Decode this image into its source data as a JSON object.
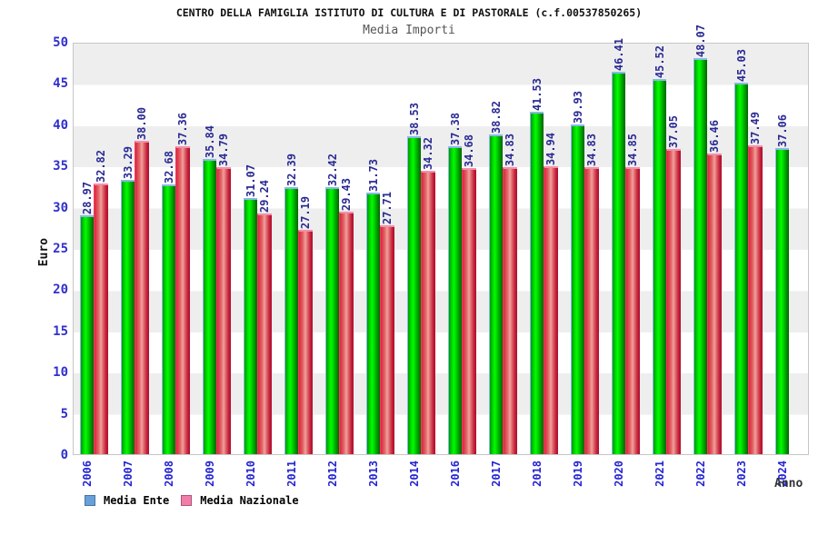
{
  "title": "CENTRO DELLA FAMIGLIA ISTITUTO DI CULTURA E DI PASTORALE (c.f.00537850265)",
  "subtitle": "Media Importi",
  "axes": {
    "y_label": "Euro",
    "x_label": "Anno"
  },
  "legend": {
    "items": [
      {
        "label": "Media Ente",
        "swatch_color": "#68A1D9",
        "swatch_border": "#47729E"
      },
      {
        "label": "Media Nazionale",
        "swatch_color": "#EF7FA9",
        "swatch_border": "#B65079"
      }
    ]
  },
  "chart_data": {
    "type": "bar",
    "title": "CENTRO DELLA FAMIGLIA ISTITUTO DI CULTURA E DI PASTORALE (c.f.00537850265)",
    "subtitle": "Media Importi",
    "xlabel": "Anno",
    "ylabel": "Euro",
    "categories": [
      "2006",
      "2007",
      "2008",
      "2009",
      "2010",
      "2011",
      "2012",
      "2013",
      "2014",
      "2016",
      "2017",
      "2018",
      "2019",
      "2020",
      "2021",
      "2022",
      "2023",
      "2024"
    ],
    "series": [
      {
        "name": "Media Ente",
        "bar_color": "green",
        "values": [
          28.97,
          33.29,
          32.68,
          35.84,
          31.07,
          32.39,
          32.42,
          31.73,
          38.53,
          37.38,
          38.82,
          41.53,
          39.93,
          46.41,
          45.52,
          48.07,
          45.03,
          37.06
        ]
      },
      {
        "name": "Media Nazionale",
        "bar_color": "red",
        "values": [
          32.82,
          38.0,
          37.36,
          34.79,
          29.24,
          27.19,
          29.43,
          27.71,
          34.32,
          34.68,
          34.83,
          34.94,
          34.83,
          34.85,
          37.05,
          36.46,
          37.49,
          null
        ]
      }
    ],
    "ylim": [
      0,
      50
    ],
    "ytick_step": 5,
    "grid": "alternating-horizontal-bands",
    "legend_position": "bottom-left",
    "value_labels": "rotated-90-above-bars",
    "tick_label_color": "#2424D2",
    "value_label_color": "#2A2A94",
    "band_color": "#EEEEEE"
  }
}
